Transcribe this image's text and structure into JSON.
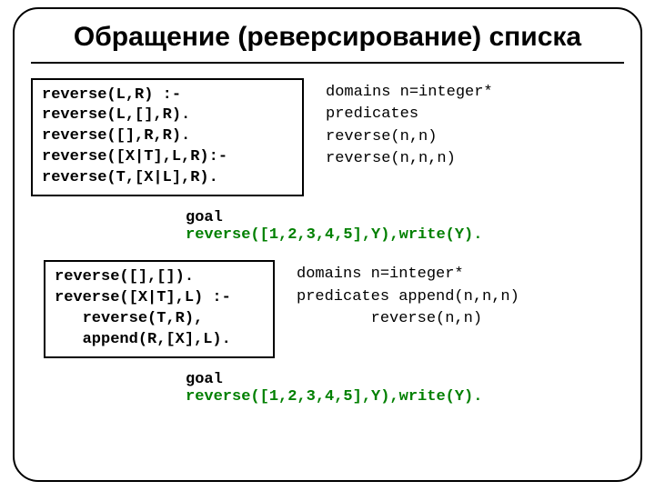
{
  "colors": {
    "border": "#000000",
    "text": "#000000",
    "accent": "#008000",
    "background": "#ffffff"
  },
  "typography": {
    "title_font": "Arial",
    "title_size_pt": 22,
    "title_weight": "bold",
    "code_font": "Courier New",
    "code_size_pt": 13,
    "code_weight_boxed": "bold"
  },
  "title": "Обращение (реверсирование) списка",
  "box1_code": "reverse(L,R) :-\nreverse(L,[],R).\nreverse([],R,R).\nreverse([X|T],L,R):-\nreverse(T,[X|L],R).",
  "right1_code": "domains n=integer*\npredicates\nreverse(n,n)\nreverse(n,n,n)",
  "goal1_label": "goal",
  "goal1_code": "reverse([1,2,3,4,5],Y),write(Y).",
  "box2_code": "reverse([],[]).\nreverse([X|T],L) :-\n   reverse(T,R),\n   append(R,[X],L).",
  "right2_code": "domains n=integer*\npredicates append(n,n,n)\n        reverse(n,n)",
  "goal2_label": "goal",
  "goal2_code": "reverse([1,2,3,4,5],Y),write(Y)."
}
